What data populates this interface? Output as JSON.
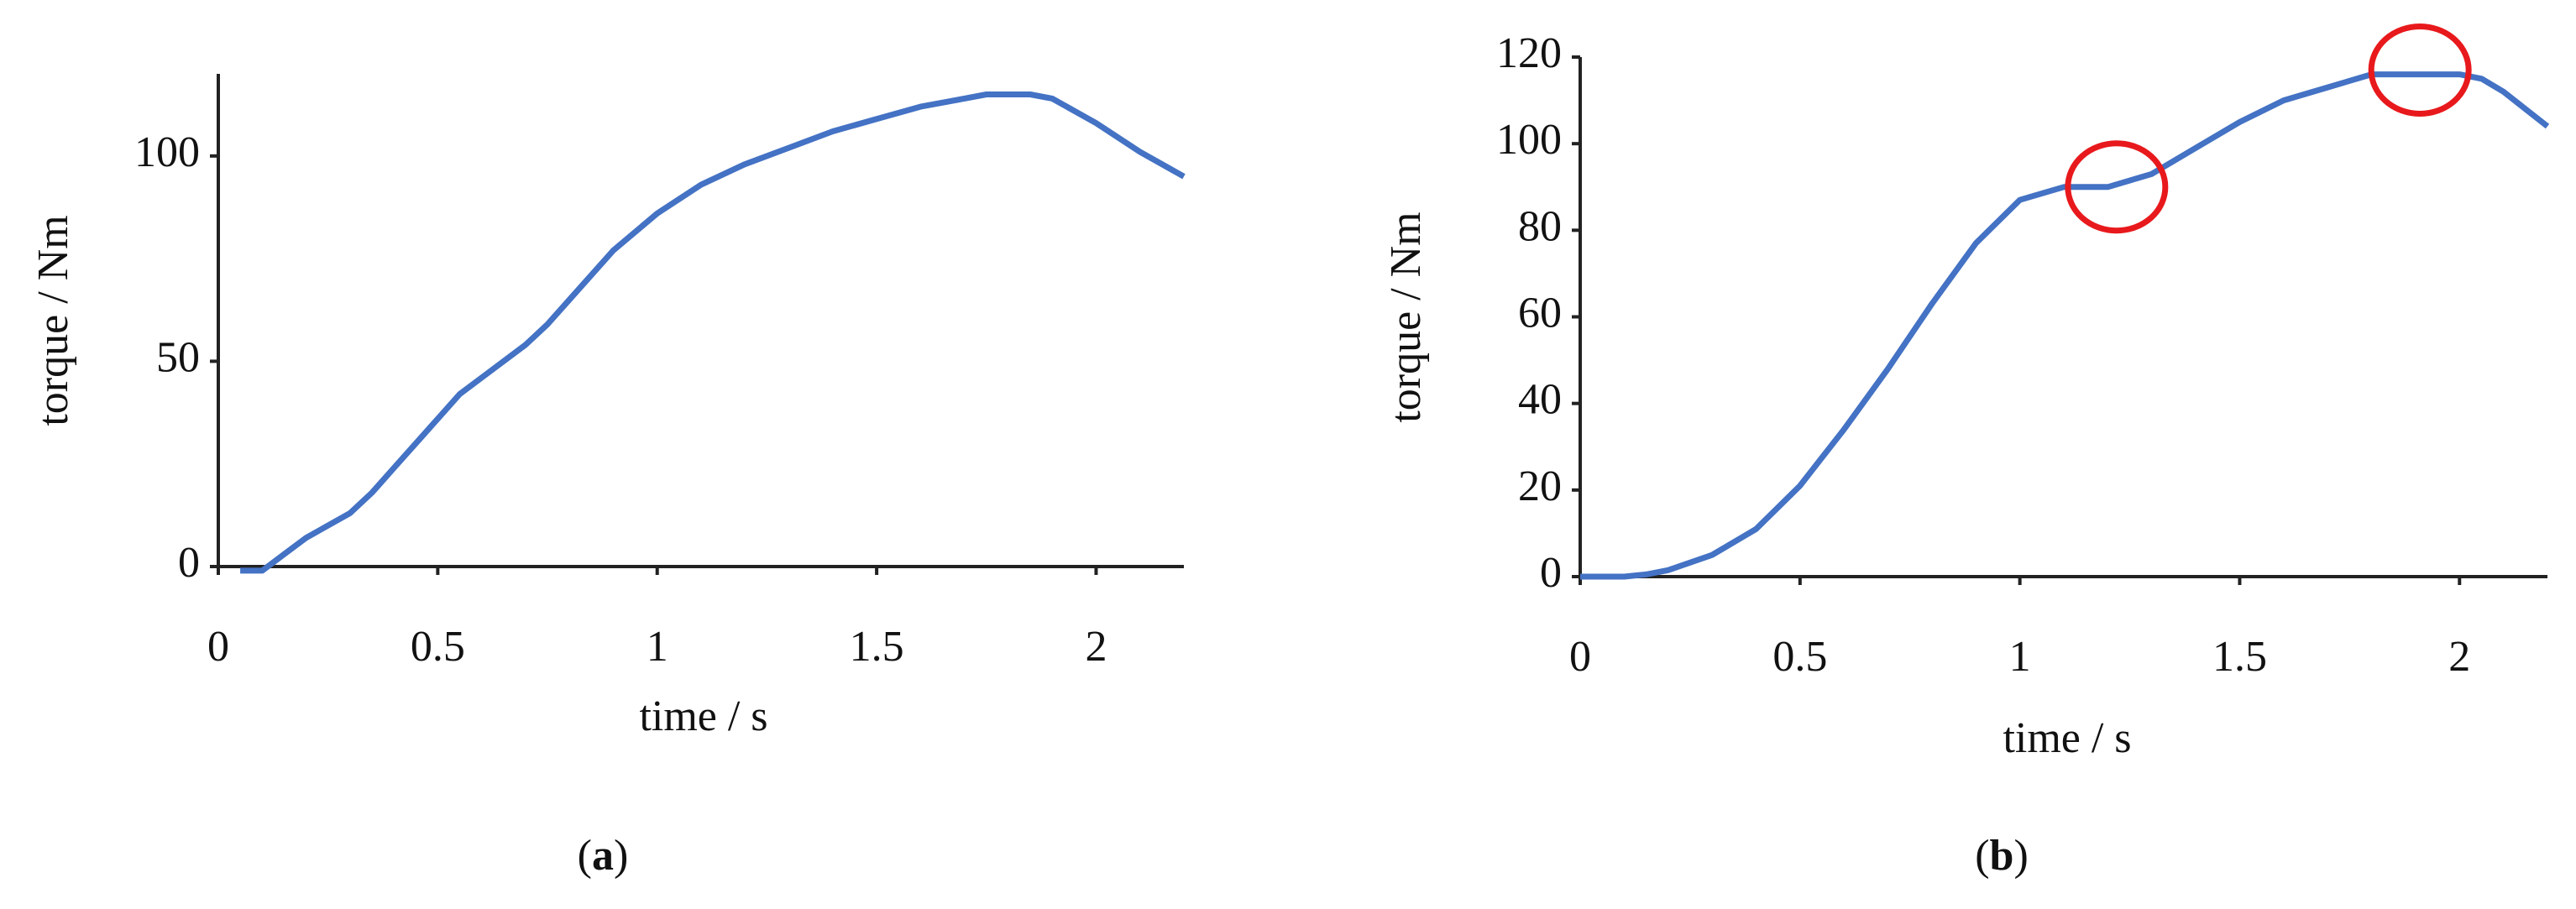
{
  "chart_data": [
    {
      "type": "line",
      "caption": "(a)",
      "xlabel": "time / s",
      "ylabel": "torque / Nm",
      "color": "#4472c4",
      "xlim": [
        0,
        2.2
      ],
      "ylim": [
        0,
        120
      ],
      "xticks": [
        0,
        0.5,
        1,
        1.5,
        2
      ],
      "yticks": [
        0,
        50,
        100
      ],
      "x": [
        0.05,
        0.1,
        0.15,
        0.2,
        0.3,
        0.35,
        0.4,
        0.5,
        0.55,
        0.6,
        0.7,
        0.75,
        0.8,
        0.9,
        1.0,
        1.1,
        1.2,
        1.3,
        1.4,
        1.5,
        1.6,
        1.7,
        1.75,
        1.85,
        1.9,
        2.0,
        2.1,
        2.2
      ],
      "values": [
        -1,
        -1,
        3,
        7,
        13,
        18,
        24,
        36,
        42,
        46,
        54,
        59,
        65,
        77,
        86,
        93,
        98,
        102,
        106,
        109,
        112,
        114,
        115,
        115,
        114,
        108,
        101,
        95
      ]
    },
    {
      "type": "line",
      "caption": "(b)",
      "xlabel": "time / s",
      "ylabel": "torque / Nm",
      "color": "#4472c4",
      "xlim": [
        0,
        2.2
      ],
      "ylim": [
        0,
        120
      ],
      "xticks": [
        0,
        0.5,
        1,
        1.5,
        2
      ],
      "yticks": [
        0,
        20,
        40,
        60,
        80,
        100,
        120
      ],
      "x": [
        0,
        0.1,
        0.15,
        0.2,
        0.3,
        0.4,
        0.5,
        0.6,
        0.7,
        0.8,
        0.9,
        1.0,
        1.1,
        1.2,
        1.3,
        1.4,
        1.5,
        1.6,
        1.7,
        1.8,
        1.9,
        2.0,
        2.05,
        2.1,
        2.2
      ],
      "values": [
        0,
        0,
        0.5,
        1.5,
        5,
        11,
        21,
        34,
        48,
        63,
        77,
        87,
        90,
        90,
        93,
        99,
        105,
        110,
        113,
        116,
        116,
        116,
        115,
        112,
        104
      ],
      "markers": {
        "x": [
          1.22,
          1.91
        ],
        "y": [
          90,
          117
        ],
        "color": "#e8191c"
      }
    }
  ]
}
